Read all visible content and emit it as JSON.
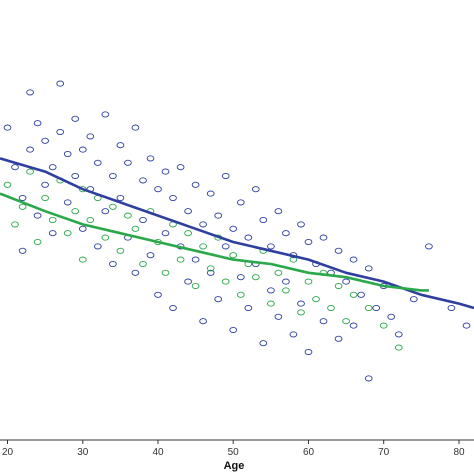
{
  "chart_data": {
    "type": "scatter",
    "title": "",
    "xlabel": "Age",
    "ylabel": "",
    "xlim": [
      19,
      82
    ],
    "ylim": [
      0,
      1
    ],
    "x_ticks": [
      20,
      30,
      40,
      50,
      60,
      70,
      80
    ],
    "x_tick_labels": [
      "20",
      "30",
      "40",
      "50",
      "60",
      "70",
      "80"
    ],
    "grid": false,
    "legend": "none",
    "marker": "open-circle",
    "colors": {
      "blue": "#2e3fa0",
      "green": "#2aa84a",
      "axis": "#333333"
    },
    "series": [
      {
        "color_key": "blue",
        "points": [
          [
            20,
            0.71
          ],
          [
            21,
            0.62
          ],
          [
            22,
            0.55
          ],
          [
            22,
            0.43
          ],
          [
            23,
            0.79
          ],
          [
            23,
            0.66
          ],
          [
            24,
            0.72
          ],
          [
            24,
            0.51
          ],
          [
            25,
            0.68
          ],
          [
            25,
            0.58
          ],
          [
            26,
            0.62
          ],
          [
            26,
            0.47
          ],
          [
            27,
            0.81
          ],
          [
            27,
            0.7
          ],
          [
            28,
            0.65
          ],
          [
            28,
            0.54
          ],
          [
            29,
            0.73
          ],
          [
            29,
            0.6
          ],
          [
            30,
            0.66
          ],
          [
            30,
            0.48
          ],
          [
            31,
            0.69
          ],
          [
            31,
            0.57
          ],
          [
            32,
            0.63
          ],
          [
            32,
            0.44
          ],
          [
            33,
            0.74
          ],
          [
            33,
            0.52
          ],
          [
            34,
            0.6
          ],
          [
            34,
            0.4
          ],
          [
            35,
            0.67
          ],
          [
            35,
            0.55
          ],
          [
            36,
            0.63
          ],
          [
            36,
            0.46
          ],
          [
            37,
            0.71
          ],
          [
            37,
            0.38
          ],
          [
            38,
            0.59
          ],
          [
            38,
            0.5
          ],
          [
            39,
            0.64
          ],
          [
            39,
            0.42
          ],
          [
            40,
            0.57
          ],
          [
            40,
            0.33
          ],
          [
            41,
            0.61
          ],
          [
            41,
            0.47
          ],
          [
            42,
            0.55
          ],
          [
            42,
            0.3
          ],
          [
            43,
            0.62
          ],
          [
            43,
            0.44
          ],
          [
            44,
            0.52
          ],
          [
            44,
            0.36
          ],
          [
            45,
            0.58
          ],
          [
            45,
            0.41
          ],
          [
            46,
            0.49
          ],
          [
            46,
            0.27
          ],
          [
            47,
            0.56
          ],
          [
            47,
            0.38
          ],
          [
            48,
            0.51
          ],
          [
            48,
            0.32
          ],
          [
            49,
            0.6
          ],
          [
            49,
            0.44
          ],
          [
            50,
            0.48
          ],
          [
            50,
            0.25
          ],
          [
            51,
            0.54
          ],
          [
            51,
            0.37
          ],
          [
            52,
            0.46
          ],
          [
            52,
            0.3
          ],
          [
            53,
            0.57
          ],
          [
            53,
            0.4
          ],
          [
            54,
            0.5
          ],
          [
            54,
            0.22
          ],
          [
            55,
            0.44
          ],
          [
            55,
            0.34
          ],
          [
            56,
            0.52
          ],
          [
            56,
            0.28
          ],
          [
            57,
            0.47
          ],
          [
            57,
            0.36
          ],
          [
            58,
            0.42
          ],
          [
            58,
            0.24
          ],
          [
            59,
            0.49
          ],
          [
            59,
            0.31
          ],
          [
            60,
            0.45
          ],
          [
            60,
            0.2
          ],
          [
            61,
            0.4
          ],
          [
            62,
            0.46
          ],
          [
            62,
            0.27
          ],
          [
            63,
            0.38
          ],
          [
            64,
            0.43
          ],
          [
            64,
            0.23
          ],
          [
            65,
            0.36
          ],
          [
            66,
            0.41
          ],
          [
            66,
            0.26
          ],
          [
            67,
            0.33
          ],
          [
            68,
            0.39
          ],
          [
            68,
            0.14
          ],
          [
            69,
            0.3
          ],
          [
            70,
            0.35
          ],
          [
            71,
            0.28
          ],
          [
            72,
            0.24
          ],
          [
            74,
            0.32
          ],
          [
            76,
            0.44
          ],
          [
            79,
            0.3
          ],
          [
            81,
            0.26
          ]
        ]
      },
      {
        "color_key": "green",
        "points": [
          [
            20,
            0.58
          ],
          [
            21,
            0.49
          ],
          [
            22,
            0.53
          ],
          [
            23,
            0.61
          ],
          [
            24,
            0.45
          ],
          [
            25,
            0.55
          ],
          [
            26,
            0.5
          ],
          [
            27,
            0.59
          ],
          [
            28,
            0.47
          ],
          [
            29,
            0.52
          ],
          [
            30,
            0.57
          ],
          [
            30,
            0.41
          ],
          [
            31,
            0.5
          ],
          [
            32,
            0.55
          ],
          [
            33,
            0.46
          ],
          [
            34,
            0.53
          ],
          [
            35,
            0.43
          ],
          [
            36,
            0.51
          ],
          [
            37,
            0.48
          ],
          [
            38,
            0.4
          ],
          [
            39,
            0.52
          ],
          [
            40,
            0.45
          ],
          [
            41,
            0.38
          ],
          [
            42,
            0.49
          ],
          [
            43,
            0.41
          ],
          [
            44,
            0.47
          ],
          [
            45,
            0.35
          ],
          [
            46,
            0.44
          ],
          [
            47,
            0.39
          ],
          [
            48,
            0.46
          ],
          [
            49,
            0.36
          ],
          [
            50,
            0.42
          ],
          [
            51,
            0.33
          ],
          [
            52,
            0.4
          ],
          [
            53,
            0.37
          ],
          [
            54,
            0.43
          ],
          [
            55,
            0.31
          ],
          [
            56,
            0.38
          ],
          [
            57,
            0.34
          ],
          [
            58,
            0.41
          ],
          [
            59,
            0.29
          ],
          [
            60,
            0.36
          ],
          [
            61,
            0.32
          ],
          [
            62,
            0.38
          ],
          [
            63,
            0.3
          ],
          [
            64,
            0.35
          ],
          [
            65,
            0.27
          ],
          [
            66,
            0.33
          ],
          [
            68,
            0.3
          ],
          [
            70,
            0.26
          ],
          [
            72,
            0.21
          ]
        ]
      }
    ],
    "fit_lines": [
      {
        "color_key": "blue",
        "x": [
          19,
          25,
          30,
          35,
          40,
          45,
          50,
          55,
          60,
          65,
          70,
          75,
          80,
          82
        ],
        "y": [
          0.64,
          0.61,
          0.57,
          0.54,
          0.51,
          0.48,
          0.45,
          0.43,
          0.41,
          0.38,
          0.36,
          0.33,
          0.31,
          0.3
        ]
      },
      {
        "color_key": "green",
        "x": [
          19,
          25,
          30,
          35,
          40,
          45,
          50,
          55,
          60,
          65,
          70,
          75,
          76
        ],
        "y": [
          0.56,
          0.52,
          0.49,
          0.47,
          0.45,
          0.43,
          0.41,
          0.4,
          0.38,
          0.37,
          0.35,
          0.34,
          0.34
        ]
      }
    ]
  }
}
